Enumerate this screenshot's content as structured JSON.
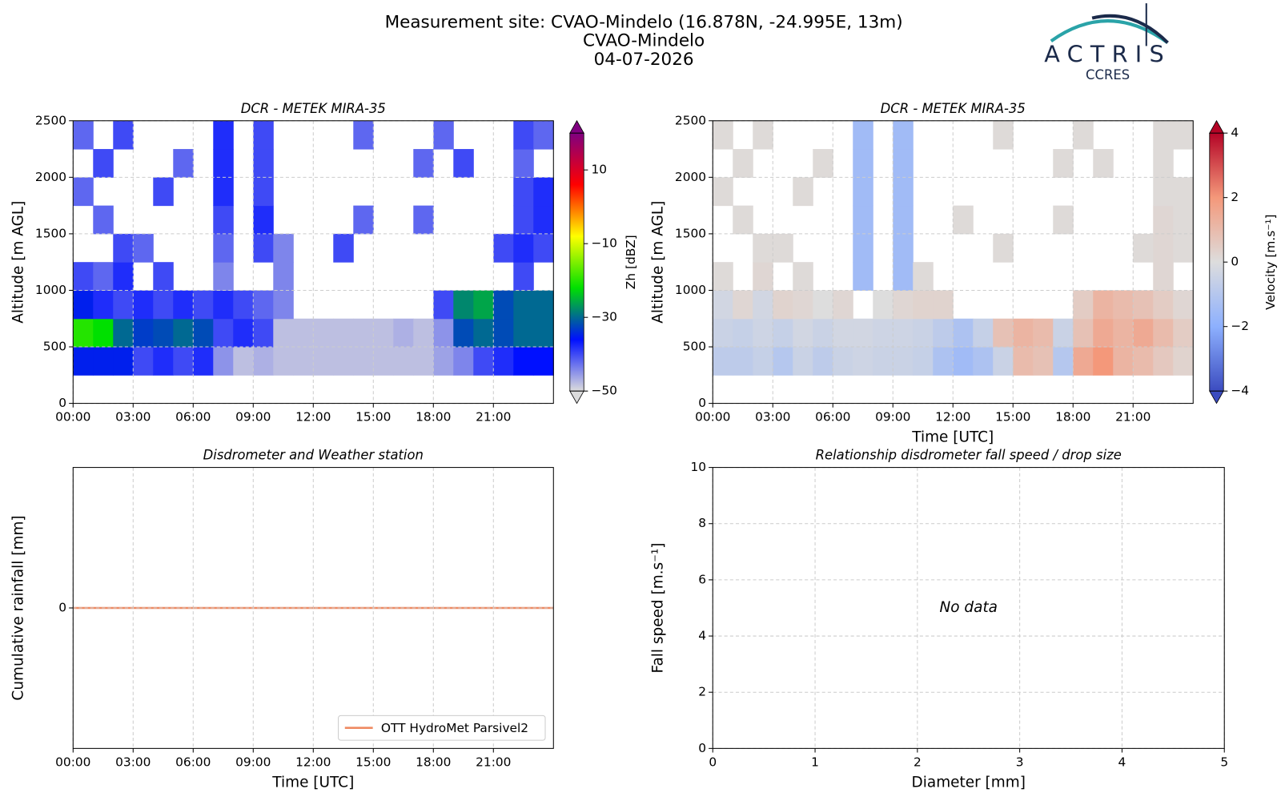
{
  "header": {
    "title_lines": [
      "Measurement site: CVAO-Mindelo (16.878N, -24.995E, 13m)",
      "CVAO-Mindelo",
      "04-07-2026"
    ],
    "logo": "ACTRIS",
    "logo_sub": "CCRES"
  },
  "chart_data": [
    {
      "type": "heatmap",
      "title": "DCR - METEK MIRA-35",
      "y_label": "Altitude [m AGL]",
      "colorbar_label": "Zh [dBZ]",
      "x_bins": [
        0,
        1,
        2,
        3,
        4,
        5,
        6,
        7,
        8,
        9,
        10,
        11,
        12,
        13,
        14,
        15,
        16,
        17,
        18,
        19,
        20,
        21,
        22,
        23,
        24
      ],
      "y_bins": [
        0,
        250,
        500,
        750,
        1000,
        1250,
        1500,
        1750,
        2000,
        2250,
        2500
      ],
      "z": [
        [
          null,
          null,
          null,
          null,
          null,
          null,
          null,
          null,
          null,
          null,
          null,
          null,
          null,
          null,
          null,
          null,
          null,
          null,
          null,
          null,
          null,
          null,
          null,
          null
        ],
        [
          -35,
          -35,
          -35,
          -40,
          -38,
          -40,
          -38,
          -45,
          -48,
          -47,
          -48,
          -48,
          -48,
          -48,
          -48,
          -48,
          -48,
          -48,
          -46,
          -44,
          -40,
          -38,
          -36,
          -36
        ],
        [
          -20,
          -22,
          -30,
          -33,
          -32,
          -30,
          -32,
          -40,
          -38,
          -40,
          -48,
          -48,
          -48,
          -48,
          -48,
          -48,
          -47,
          -48,
          -45,
          -32,
          -30,
          -32,
          -30,
          -30
        ],
        [
          -35,
          -38,
          -40,
          -38,
          -40,
          -38,
          -40,
          -38,
          -40,
          -42,
          -44,
          null,
          null,
          null,
          null,
          null,
          null,
          null,
          -40,
          -28,
          -26,
          -32,
          -30,
          -30
        ],
        [
          -40,
          -42,
          -38,
          null,
          -40,
          null,
          null,
          -44,
          null,
          null,
          -44,
          null,
          null,
          null,
          null,
          null,
          null,
          null,
          null,
          null,
          null,
          null,
          -40,
          null
        ],
        [
          null,
          null,
          -40,
          -42,
          null,
          null,
          null,
          -42,
          null,
          -40,
          -44,
          null,
          null,
          -40,
          null,
          null,
          null,
          null,
          null,
          null,
          null,
          -40,
          -38,
          -40
        ],
        [
          null,
          -42,
          null,
          null,
          null,
          null,
          null,
          -40,
          null,
          -38,
          null,
          null,
          null,
          null,
          -42,
          null,
          null,
          -42,
          null,
          null,
          null,
          null,
          -40,
          -38
        ],
        [
          -42,
          null,
          null,
          null,
          -40,
          null,
          null,
          -38,
          null,
          -40,
          null,
          null,
          null,
          null,
          null,
          null,
          null,
          null,
          null,
          null,
          null,
          null,
          -40,
          -38
        ],
        [
          null,
          -40,
          null,
          null,
          null,
          -42,
          null,
          -38,
          null,
          -40,
          null,
          null,
          null,
          null,
          null,
          null,
          null,
          -42,
          null,
          -40,
          null,
          null,
          -42,
          null
        ],
        [
          -42,
          null,
          -40,
          null,
          null,
          null,
          null,
          -38,
          null,
          -40,
          null,
          null,
          null,
          null,
          -42,
          null,
          null,
          null,
          -42,
          null,
          null,
          null,
          -40,
          -42
        ]
      ],
      "colors": [
        "#dcdcdc",
        "#0010ff",
        "#00e000",
        "#ffff00",
        "#ff0000",
        "#800080"
      ],
      "clim": [
        -50,
        20
      ],
      "cticks": [
        {
          "value": -50,
          "label": "−50"
        },
        {
          "value": -30,
          "label": "−30"
        },
        {
          "value": -10,
          "label": "−10"
        },
        10
      ],
      "xlim": [
        0,
        24
      ],
      "xticks": [
        {
          "value": 0,
          "label": "00:00"
        },
        {
          "value": 3,
          "label": "03:00"
        },
        {
          "value": 6,
          "label": "06:00"
        },
        {
          "value": 9,
          "label": "09:00"
        },
        {
          "value": 12,
          "label": "12:00"
        },
        {
          "value": 15,
          "label": "15:00"
        },
        {
          "value": 18,
          "label": "18:00"
        },
        {
          "value": 21,
          "label": "21:00"
        }
      ],
      "ylim": [
        0,
        2500
      ],
      "yticks": [
        0,
        500,
        1000,
        1500,
        2000,
        2500
      ],
      "grid": true
    },
    {
      "type": "heatmap",
      "title": "DCR - METEK MIRA-35",
      "x_label": "Time [UTC]",
      "y_label": "Altitude [m AGL]",
      "colorbar_label": "Velocity [m.s⁻¹]",
      "x_bins": [
        0,
        1,
        2,
        3,
        4,
        5,
        6,
        7,
        8,
        9,
        10,
        11,
        12,
        13,
        14,
        15,
        16,
        17,
        18,
        19,
        20,
        21,
        22,
        23,
        24
      ],
      "y_bins": [
        0,
        250,
        500,
        750,
        1000,
        1250,
        1500,
        1750,
        2000,
        2250,
        2500
      ],
      "z": [
        [
          null,
          null,
          null,
          null,
          null,
          null,
          null,
          null,
          null,
          null,
          null,
          null,
          null,
          null,
          null,
          null,
          null,
          null,
          null,
          null,
          null,
          null,
          null,
          null
        ],
        [
          -0.8,
          -0.8,
          -0.6,
          -1,
          -0.5,
          -0.8,
          -0.5,
          -0.4,
          -0.5,
          -0.5,
          -0.6,
          -1.2,
          -1.5,
          -1.2,
          -0.5,
          1,
          0.8,
          -1,
          1.5,
          2,
          1.2,
          1,
          0.6,
          0.3
        ],
        [
          -0.5,
          -0.6,
          -0.4,
          -0.6,
          -0.3,
          -0.5,
          -0.3,
          -0.3,
          -0.4,
          -0.4,
          -0.5,
          -0.8,
          -1.2,
          -0.6,
          0.8,
          1.2,
          1,
          -0.5,
          0.8,
          1.5,
          1.2,
          1.5,
          1,
          0.5
        ],
        [
          -0.3,
          0.2,
          -0.3,
          0.3,
          0.2,
          0,
          0.2,
          null,
          0,
          0.2,
          0.3,
          0.3,
          null,
          null,
          null,
          null,
          null,
          null,
          0.5,
          1.2,
          1,
          0.8,
          0.5,
          0.2
        ],
        [
          0.1,
          null,
          0.2,
          null,
          0.1,
          null,
          null,
          -1.5,
          null,
          -1.5,
          0.1,
          null,
          null,
          null,
          null,
          null,
          null,
          null,
          null,
          null,
          null,
          null,
          0.2,
          null
        ],
        [
          null,
          null,
          0.1,
          0.1,
          null,
          null,
          null,
          -1.5,
          null,
          -1.5,
          null,
          null,
          null,
          null,
          0.1,
          null,
          null,
          null,
          null,
          null,
          null,
          0.1,
          0.2,
          0.1
        ],
        [
          null,
          0.1,
          null,
          null,
          null,
          null,
          null,
          -1.5,
          null,
          -1.5,
          null,
          null,
          0.1,
          null,
          null,
          null,
          null,
          0.1,
          null,
          null,
          null,
          null,
          0.2,
          0.1
        ],
        [
          0.1,
          null,
          null,
          null,
          0.1,
          null,
          null,
          -1.5,
          null,
          -1.5,
          null,
          null,
          null,
          null,
          null,
          null,
          null,
          null,
          null,
          null,
          null,
          null,
          0.1,
          0.1
        ],
        [
          null,
          0.1,
          null,
          null,
          null,
          0.1,
          null,
          -1.5,
          null,
          -1.5,
          null,
          null,
          null,
          null,
          null,
          null,
          null,
          0.1,
          null,
          0.1,
          null,
          null,
          0.1,
          null
        ],
        [
          0.1,
          null,
          0.1,
          null,
          null,
          null,
          null,
          -1.5,
          null,
          -1.5,
          null,
          null,
          null,
          null,
          0.1,
          null,
          null,
          null,
          0.1,
          null,
          null,
          null,
          0.1,
          0.1
        ]
      ],
      "colors": [
        "#3b4cc0",
        "#8db0fe",
        "#dddddd",
        "#f4987a",
        "#b40426"
      ],
      "clim": [
        -4,
        4
      ],
      "cticks": [
        {
          "value": -4,
          "label": "−4"
        },
        {
          "value": -2,
          "label": "−2"
        },
        0,
        2,
        4
      ],
      "xlim": [
        0,
        24
      ],
      "xticks": [
        {
          "value": 0,
          "label": "00:00"
        },
        {
          "value": 3,
          "label": "03:00"
        },
        {
          "value": 6,
          "label": "06:00"
        },
        {
          "value": 9,
          "label": "09:00"
        },
        {
          "value": 12,
          "label": "12:00"
        },
        {
          "value": 15,
          "label": "15:00"
        },
        {
          "value": 18,
          "label": "18:00"
        },
        {
          "value": 21,
          "label": "21:00"
        }
      ],
      "ylim": [
        0,
        2500
      ],
      "yticks": [
        0,
        500,
        1000,
        1500,
        2000,
        2500
      ],
      "grid": true
    },
    {
      "type": "line",
      "title": "Disdrometer and Weather station",
      "x_label": "Time [UTC]",
      "y_label": "Cumulative rainfall [mm]",
      "x": [
        0,
        24
      ],
      "series": [
        {
          "name": "OTT HydroMet Parsivel2",
          "color": "#ef8a62",
          "values": [
            0,
            0
          ]
        }
      ],
      "legend": "lower right",
      "xlim": [
        0,
        24
      ],
      "xticks": [
        {
          "value": 0,
          "label": "00:00"
        },
        {
          "value": 3,
          "label": "03:00"
        },
        {
          "value": 6,
          "label": "06:00"
        },
        {
          "value": 9,
          "label": "09:00"
        },
        {
          "value": 12,
          "label": "12:00"
        },
        {
          "value": 15,
          "label": "15:00"
        },
        {
          "value": 18,
          "label": "18:00"
        },
        {
          "value": 21,
          "label": "21:00"
        }
      ],
      "ylim": [
        -1,
        1
      ],
      "yticks": [
        0
      ],
      "grid": true
    },
    {
      "type": "scatter",
      "title": "Relationship disdrometer fall speed / drop size",
      "x_label": "Diameter [mm]",
      "y_label": "Fall speed [m.s⁻¹]",
      "annotation": "No data",
      "xlim": [
        0,
        5
      ],
      "xticks": [
        0,
        1,
        2,
        3,
        4,
        5
      ],
      "ylim": [
        0,
        10
      ],
      "yticks": [
        0,
        2,
        4,
        6,
        8,
        10
      ],
      "grid": true
    }
  ]
}
